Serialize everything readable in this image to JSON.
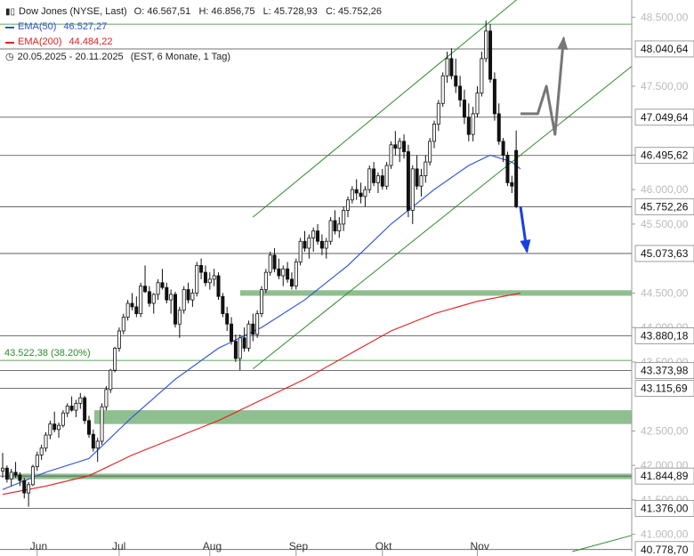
{
  "legend": {
    "instrument": "Dow Jones (NYSE, Last)",
    "ohlc": "O: 46.567,51   H: 46.856,75   L: 45.728,93   C: 45.752,26",
    "ema50_label": "EMA(50)",
    "ema50_value": "46.527,27",
    "ema200_label": "EMA(200)",
    "ema200_value": "44.484,22",
    "period": "20.05.2025 - 20.11.2025",
    "period_note": "(EST, 6 Monate, 1 Tag)"
  },
  "colors": {
    "ema50": "#2b4fd8",
    "ema200": "#e02020",
    "channel": "#2e8b2e",
    "zone": "#8fbf8f",
    "level": "#444444",
    "tag_bg": "#ffffff",
    "candle_up": "#ffffff",
    "candle_down": "#111111",
    "arrow_up": "#777777",
    "arrow_down": "#1a3ee0"
  },
  "chart_data": {
    "type": "candlestick",
    "y_axis": {
      "ticks": [
        "48.500,00",
        "47.500,00",
        "46.500,00",
        "46.000,00",
        "45.500,00",
        "44.500,00",
        "44.000,00",
        "43.500,00",
        "42.500,00",
        "42.000,00",
        "41.500,00",
        "41.000,00"
      ],
      "tick_values": [
        48500,
        47500,
        46500,
        46000,
        45500,
        44500,
        44000,
        43500,
        42500,
        42000,
        41500,
        41000
      ],
      "range": [
        40750,
        48750
      ]
    },
    "x_axis": {
      "labels": [
        "Jun",
        "Jul",
        "Aug",
        "Sep",
        "Okt",
        "Nov"
      ]
    },
    "levels": [
      {
        "value": 48400,
        "label": "",
        "tag": "",
        "color": "green"
      },
      {
        "value": 48040.64,
        "label": "",
        "tag": "48.040,64"
      },
      {
        "value": 47049.64,
        "label": "",
        "tag": "47.049,64"
      },
      {
        "value": 46495.62,
        "label": "",
        "tag": "46.495,62"
      },
      {
        "value": 45752.26,
        "label": "",
        "tag": "45.752,26"
      },
      {
        "value": 45073.63,
        "label": "",
        "tag": "45.073,63"
      },
      {
        "value": 43880.18,
        "label": "",
        "tag": "43.880,18"
      },
      {
        "value": 43522.38,
        "label": "43.522,38 (38.20%)",
        "tag": "",
        "color": "green"
      },
      {
        "value": 43373.98,
        "label": "",
        "tag": "43.373,98"
      },
      {
        "value": 43115.69,
        "label": "",
        "tag": "43.115,69"
      },
      {
        "value": 41844.89,
        "label": "",
        "tag": "41.844,89"
      },
      {
        "value": 41376.0,
        "label": "",
        "tag": "41.376,00"
      },
      {
        "value": 40778.7,
        "label": "",
        "tag": "40.778,70"
      }
    ],
    "zones": [
      {
        "from": 44460,
        "to": 44540
      },
      {
        "from": 42600,
        "to": 42800
      },
      {
        "from": 41800,
        "to": 41880
      }
    ],
    "candles": [
      [
        41920,
        42180,
        41820,
        41960
      ],
      [
        41960,
        42000,
        41750,
        41800
      ],
      [
        41800,
        41950,
        41700,
        41900
      ],
      [
        41900,
        42050,
        41820,
        41860
      ],
      [
        41860,
        41900,
        41700,
        41780
      ],
      [
        41780,
        41820,
        41520,
        41600
      ],
      [
        41600,
        41760,
        41400,
        41720
      ],
      [
        41720,
        42010,
        41700,
        41980
      ],
      [
        41980,
        42200,
        41920,
        42150
      ],
      [
        42150,
        42300,
        42080,
        42250
      ],
      [
        42250,
        42480,
        42200,
        42440
      ],
      [
        42440,
        42650,
        42380,
        42600
      ],
      [
        42600,
        42780,
        42480,
        42520
      ],
      [
        42520,
        42620,
        42400,
        42580
      ],
      [
        42580,
        42800,
        42550,
        42760
      ],
      [
        42760,
        42900,
        42700,
        42860
      ],
      [
        42860,
        43000,
        42780,
        42800
      ],
      [
        42800,
        42950,
        42700,
        42900
      ],
      [
        42900,
        43050,
        42820,
        42980
      ],
      [
        42980,
        43010,
        42600,
        42650
      ],
      [
        42650,
        42720,
        42400,
        42450
      ],
      [
        42450,
        42520,
        42200,
        42250
      ],
      [
        42250,
        42400,
        42050,
        42350
      ],
      [
        42350,
        42900,
        42300,
        42850
      ],
      [
        42850,
        43150,
        42800,
        43100
      ],
      [
        43100,
        43400,
        43050,
        43380
      ],
      [
        43380,
        43720,
        43350,
        43700
      ],
      [
        43700,
        44000,
        43650,
        43950
      ],
      [
        43950,
        44200,
        43900,
        44150
      ],
      [
        44150,
        44400,
        44100,
        44350
      ],
      [
        44350,
        44500,
        44250,
        44300
      ],
      [
        44300,
        44450,
        44150,
        44200
      ],
      [
        44200,
        44650,
        44150,
        44600
      ],
      [
        44600,
        44900,
        44500,
        44520
      ],
      [
        44520,
        44600,
        44300,
        44350
      ],
      [
        44350,
        44500,
        44200,
        44480
      ],
      [
        44480,
        44700,
        44400,
        44650
      ],
      [
        44650,
        44850,
        44550,
        44580
      ],
      [
        44580,
        44650,
        44350,
        44400
      ],
      [
        44400,
        44550,
        44200,
        44480
      ],
      [
        44480,
        44520,
        44000,
        44050
      ],
      [
        44050,
        44300,
        43850,
        44250
      ],
      [
        44250,
        44600,
        44200,
        44550
      ],
      [
        44550,
        44650,
        44350,
        44400
      ],
      [
        44400,
        44560,
        44300,
        44500
      ],
      [
        44500,
        44950,
        44450,
        44900
      ],
      [
        44900,
        45000,
        44700,
        44800
      ],
      [
        44800,
        44900,
        44600,
        44650
      ],
      [
        44650,
        44800,
        44550,
        44700
      ],
      [
        44700,
        44850,
        44600,
        44750
      ],
      [
        44750,
        44800,
        44400,
        44450
      ],
      [
        44450,
        44500,
        44150,
        44200
      ],
      [
        44200,
        44300,
        43950,
        44050
      ],
      [
        44050,
        44150,
        43750,
        43800
      ],
      [
        43800,
        43900,
        43500,
        43550
      ],
      [
        43550,
        43900,
        43380,
        43850
      ],
      [
        43850,
        44000,
        43650,
        43700
      ],
      [
        43700,
        44100,
        43650,
        44050
      ],
      [
        44050,
        44200,
        43800,
        43900
      ],
      [
        43900,
        44250,
        43850,
        44200
      ],
      [
        44200,
        44600,
        44150,
        44550
      ],
      [
        44550,
        44850,
        44500,
        44800
      ],
      [
        44800,
        45100,
        44750,
        45050
      ],
      [
        45050,
        45150,
        44800,
        44850
      ],
      [
        44850,
        45000,
        44700,
        44750
      ],
      [
        44750,
        44900,
        44600,
        44850
      ],
      [
        44850,
        44950,
        44650,
        44700
      ],
      [
        44700,
        44800,
        44550,
        44600
      ],
      [
        44600,
        45000,
        44550,
        44950
      ],
      [
        44950,
        45300,
        44900,
        45250
      ],
      [
        45250,
        45400,
        45100,
        45150
      ],
      [
        45150,
        45350,
        45000,
        45300
      ],
      [
        45300,
        45450,
        45100,
        45400
      ],
      [
        45400,
        45500,
        45200,
        45250
      ],
      [
        45250,
        45350,
        45050,
        45150
      ],
      [
        45150,
        45300,
        45000,
        45250
      ],
      [
        45250,
        45600,
        45200,
        45550
      ],
      [
        45550,
        45700,
        45350,
        45400
      ],
      [
        45400,
        45600,
        45300,
        45500
      ],
      [
        45500,
        45750,
        45400,
        45700
      ],
      [
        45700,
        45900,
        45600,
        45850
      ],
      [
        45850,
        46050,
        45800,
        46000
      ],
      [
        46000,
        46150,
        45850,
        45950
      ],
      [
        45950,
        46100,
        45800,
        45900
      ],
      [
        45900,
        46050,
        45750,
        46000
      ],
      [
        46000,
        46350,
        45950,
        46300
      ],
      [
        46300,
        46400,
        46050,
        46100
      ],
      [
        46100,
        46250,
        45950,
        46200
      ],
      [
        46200,
        46300,
        46000,
        46050
      ],
      [
        46050,
        46400,
        46000,
        46350
      ],
      [
        46350,
        46700,
        46300,
        46650
      ],
      [
        46650,
        46850,
        46500,
        46600
      ],
      [
        46600,
        46750,
        46400,
        46700
      ],
      [
        46700,
        46800,
        46450,
        46550
      ],
      [
        46550,
        46650,
        45600,
        45700
      ],
      [
        45700,
        46350,
        45500,
        46300
      ],
      [
        46300,
        46500,
        46000,
        46050
      ],
      [
        46050,
        46300,
        45900,
        46200
      ],
      [
        46200,
        46500,
        46100,
        46400
      ],
      [
        46400,
        46750,
        46350,
        46700
      ],
      [
        46700,
        47000,
        46600,
        46950
      ],
      [
        46950,
        47300,
        46850,
        47250
      ],
      [
        47250,
        47700,
        47200,
        47650
      ],
      [
        47650,
        48000,
        47550,
        47900
      ],
      [
        47900,
        48050,
        47600,
        47650
      ],
      [
        47650,
        47900,
        47400,
        47500
      ],
      [
        47500,
        47650,
        47200,
        47300
      ],
      [
        47300,
        47450,
        46950,
        47050
      ],
      [
        47050,
        47250,
        46700,
        46800
      ],
      [
        46800,
        47200,
        46700,
        47100
      ],
      [
        47100,
        47500,
        47050,
        47400
      ],
      [
        47400,
        48000,
        47350,
        47900
      ],
      [
        47900,
        48450,
        47850,
        48300
      ],
      [
        48300,
        48400,
        47550,
        47600
      ],
      [
        47600,
        47700,
        47000,
        47100
      ],
      [
        47100,
        47250,
        46650,
        46700
      ],
      [
        46700,
        46750,
        46400,
        46500
      ],
      [
        46500,
        46550,
        46050,
        46100
      ],
      [
        46100,
        46200,
        45950,
        46050
      ],
      [
        46567.51,
        46856.75,
        45728.93,
        45752.26
      ]
    ],
    "ema50": [
      [
        0,
        41650
      ],
      [
        10,
        41900
      ],
      [
        20,
        42100
      ],
      [
        30,
        42700
      ],
      [
        40,
        43250
      ],
      [
        50,
        43700
      ],
      [
        60,
        44000
      ],
      [
        70,
        44400
      ],
      [
        80,
        44900
      ],
      [
        90,
        45500
      ],
      [
        100,
        46000
      ],
      [
        108,
        46350
      ],
      [
        113,
        46500
      ],
      [
        118,
        46400
      ],
      [
        120,
        46300
      ]
    ],
    "ema200": [
      [
        0,
        41580
      ],
      [
        10,
        41700
      ],
      [
        20,
        41850
      ],
      [
        30,
        42150
      ],
      [
        40,
        42400
      ],
      [
        50,
        42650
      ],
      [
        60,
        42950
      ],
      [
        70,
        43250
      ],
      [
        80,
        43600
      ],
      [
        90,
        43950
      ],
      [
        100,
        44200
      ],
      [
        110,
        44380
      ],
      [
        120,
        44500
      ]
    ],
    "channel": [
      {
        "from": [
          58,
          43400
        ],
        "to": [
          120,
          46500
        ],
        "extend_to_edge": true
      },
      {
        "from": [
          58,
          45600
        ],
        "to": [
          120,
          48800
        ],
        "extend_to_edge": true
      },
      {
        "from": [
          132,
          40750
        ],
        "to": [
          176,
          41500
        ],
        "extend_to_edge": false
      }
    ],
    "arrow_up_path": [
      [
        120,
        47100
      ],
      [
        124,
        47100
      ],
      [
        126,
        47500
      ],
      [
        128,
        46800
      ],
      [
        130,
        48200
      ]
    ],
    "arrow_down_path": [
      [
        120,
        45750
      ],
      [
        121.5,
        45100
      ]
    ]
  }
}
